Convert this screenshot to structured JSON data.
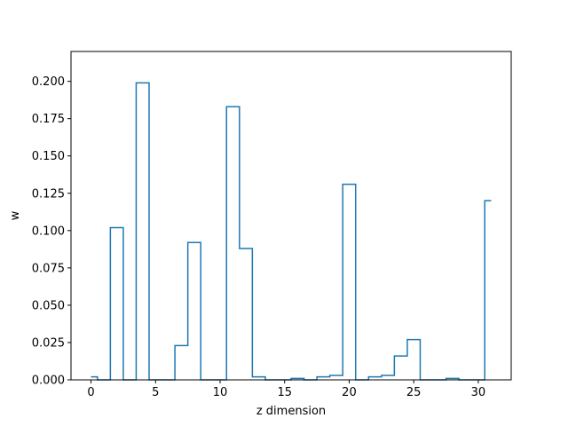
{
  "chart_data": {
    "type": "step",
    "title": "",
    "xlabel": "z dimension",
    "ylabel": "w",
    "xlim": [
      -1.55,
      32.55
    ],
    "ylim": [
      0,
      0.22
    ],
    "xticks": [
      0,
      5,
      10,
      15,
      20,
      25,
      30
    ],
    "yticks": [
      0.0,
      0.025,
      0.05,
      0.075,
      0.1,
      0.125,
      0.15,
      0.175,
      0.2
    ],
    "ytick_labels": [
      "0.000",
      "0.025",
      "0.050",
      "0.075",
      "0.100",
      "0.125",
      "0.150",
      "0.175",
      "0.200"
    ],
    "grid": false,
    "line_color": "#1f77b4",
    "step_where": "mid",
    "x": [
      0,
      1,
      2,
      3,
      4,
      5,
      6,
      7,
      8,
      9,
      10,
      11,
      12,
      13,
      14,
      15,
      16,
      17,
      18,
      19,
      20,
      21,
      22,
      23,
      24,
      25,
      26,
      27,
      28,
      29,
      30,
      31
    ],
    "values": [
      0.002,
      0.0,
      0.102,
      0.0,
      0.199,
      0.0,
      0.0,
      0.023,
      0.092,
      0.0,
      0.0,
      0.183,
      0.088,
      0.002,
      0.0,
      0.0,
      0.001,
      0.0,
      0.002,
      0.003,
      0.131,
      0.0,
      0.002,
      0.003,
      0.016,
      0.027,
      0.0,
      0.0,
      0.001,
      0.0,
      0.0,
      0.12
    ]
  }
}
